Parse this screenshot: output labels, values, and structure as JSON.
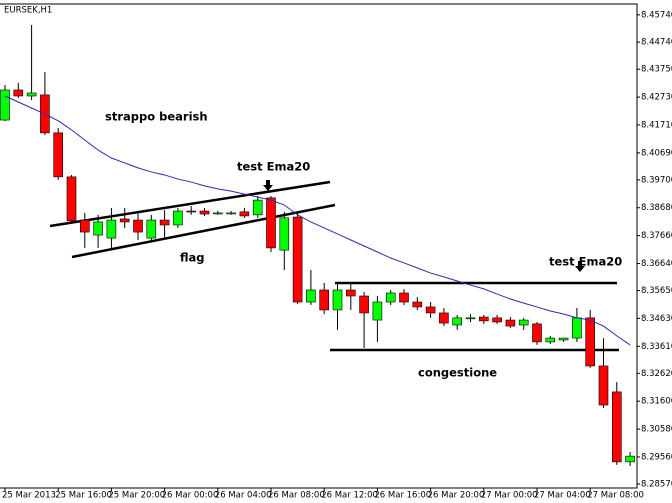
{
  "chart_data": {
    "type": "candlestick",
    "title": "EURSEK,H1",
    "categories": [
      "25 Mar 2013",
      null,
      null,
      null,
      "25 Mar 16:00",
      null,
      null,
      null,
      "25 Mar 20:00",
      null,
      null,
      null,
      "26 Mar 00:00",
      null,
      null,
      null,
      "26 Mar 04:00",
      null,
      null,
      null,
      "26 Mar 08:00",
      null,
      null,
      null,
      "26 Mar 12:00",
      null,
      null,
      null,
      "26 Mar 16:00",
      null,
      null,
      null,
      "26 Mar 20:00",
      null,
      null,
      null,
      "27 Mar 00:00",
      null,
      null,
      null,
      "27 Mar 04:00",
      null,
      null,
      null,
      "27 Mar 08:00",
      null,
      null,
      null
    ],
    "open": [
      8.4189,
      8.4299,
      8.4277,
      8.4281,
      8.4142,
      8.3981,
      8.3823,
      8.3768,
      8.3757,
      8.3827,
      8.3823,
      8.3757,
      8.3823,
      8.3805,
      8.3856,
      8.3856,
      8.3849,
      8.3849,
      8.3853,
      8.3842,
      8.3904,
      8.3713,
      8.3834,
      8.3523,
      8.3567,
      8.3494,
      8.3567,
      8.3545,
      8.3457,
      8.3523,
      8.3556,
      8.3523,
      8.3505,
      8.3483,
      8.3439,
      8.3465,
      8.3468,
      8.3465,
      8.3457,
      8.3439,
      8.3443,
      8.3377,
      8.3384,
      8.3391,
      8.3465,
      8.3289,
      8.3194,
      8.2938
    ],
    "high": [
      8.4317,
      8.4325,
      8.4537,
      8.4365,
      8.416,
      8.3988,
      8.3849,
      8.3842,
      8.3867,
      8.3867,
      8.3853,
      8.3842,
      8.386,
      8.3867,
      8.3874,
      8.3867,
      8.3856,
      8.3856,
      8.3867,
      8.3911,
      8.3911,
      8.3853,
      8.3853,
      8.364,
      8.3593,
      8.3593,
      8.3589,
      8.356,
      8.3545,
      8.3567,
      8.3571,
      8.3541,
      8.3523,
      8.3501,
      8.3476,
      8.3479,
      8.3476,
      8.3476,
      8.3468,
      8.3465,
      8.345,
      8.3399,
      8.3391,
      8.3501,
      8.3494,
      8.3391,
      8.323,
      8.2974
    ],
    "low": [
      8.4185,
      8.427,
      8.4262,
      8.4134,
      8.397,
      8.3816,
      8.3721,
      8.3721,
      8.3713,
      8.3794,
      8.375,
      8.375,
      8.3757,
      8.3794,
      8.3842,
      8.3838,
      8.3842,
      8.3842,
      8.3831,
      8.3831,
      8.3706,
      8.364,
      8.3516,
      8.3512,
      8.3479,
      8.3421,
      8.3494,
      8.3355,
      8.3377,
      8.3512,
      8.3512,
      8.3494,
      8.3465,
      8.3435,
      8.3421,
      8.345,
      8.3443,
      8.3443,
      8.3428,
      8.3421,
      8.3366,
      8.3369,
      8.3377,
      8.3377,
      8.3282,
      8.3135,
      8.2927,
      8.2923
    ],
    "close": [
      8.4299,
      8.4277,
      8.4288,
      8.4142,
      8.3981,
      8.382,
      8.3779,
      8.3816,
      8.3823,
      8.3816,
      8.3779,
      8.3823,
      8.3805,
      8.3856,
      8.3853,
      8.3845,
      8.3849,
      8.3849,
      8.3838,
      8.3896,
      8.3721,
      8.3831,
      8.3523,
      8.3567,
      8.3494,
      8.3567,
      8.3545,
      8.3483,
      8.3523,
      8.3556,
      8.3523,
      8.3505,
      8.3483,
      8.3446,
      8.3465,
      8.3465,
      8.3454,
      8.345,
      8.3435,
      8.3457,
      8.3377,
      8.3391,
      8.3391,
      8.3465,
      8.3289,
      8.3146,
      8.2938,
      8.2959
    ],
    "up_color": "#00ff00",
    "down_color": "#ff0000",
    "ema": {
      "color": "#2b2bb0",
      "values": [
        8.4277,
        8.4255,
        8.4233,
        8.4211,
        8.4186,
        8.4153,
        8.4116,
        8.4079,
        8.405,
        8.4032,
        8.4014,
        8.3999,
        8.3988,
        8.3973,
        8.3962,
        8.3948,
        8.3937,
        8.3929,
        8.3918,
        8.3907,
        8.3896,
        8.3878,
        8.3842,
        8.3816,
        8.3794,
        8.3772,
        8.375,
        8.3728,
        8.3706,
        8.3684,
        8.3666,
        8.3648,
        8.3629,
        8.3615,
        8.36,
        8.3585,
        8.3571,
        8.3552,
        8.3534,
        8.3519,
        8.3505,
        8.349,
        8.3479,
        8.3465,
        8.3457,
        8.3435,
        8.3399,
        8.3366
      ]
    },
    "ylim": [
      8.2846,
      8.461
    ],
    "yticks": [
      {
        "value": 8.2857,
        "label": "8.28570"
      },
      {
        "value": 8.2956,
        "label": "8.29560"
      },
      {
        "value": 8.3058,
        "label": "8.30580"
      },
      {
        "value": 8.316,
        "label": "8.31600"
      },
      {
        "value": 8.3262,
        "label": "8.32620"
      },
      {
        "value": 8.3361,
        "label": "8.33610"
      },
      {
        "value": 8.3463,
        "label": "8.34630"
      },
      {
        "value": 8.3565,
        "label": "8.35650"
      },
      {
        "value": 8.3664,
        "label": "8.36640"
      },
      {
        "value": 8.3766,
        "label": "8.37660"
      },
      {
        "value": 8.3868,
        "label": "8.38680"
      },
      {
        "value": 8.397,
        "label": "8.39700"
      },
      {
        "value": 8.4069,
        "label": "8.40690"
      },
      {
        "value": 8.4171,
        "label": "8.41710"
      },
      {
        "value": 8.4273,
        "label": "8.42730"
      },
      {
        "value": 8.4375,
        "label": "8.43750"
      },
      {
        "value": 8.4474,
        "label": "8.44740"
      },
      {
        "value": 8.4574,
        "label": "8.45740"
      }
    ],
    "annotations": [
      "strappo bearish",
      "test Ema20",
      "flag",
      "test Ema20",
      "congestione"
    ]
  }
}
